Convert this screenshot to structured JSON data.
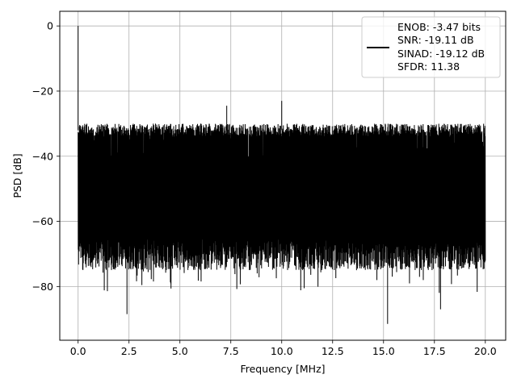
{
  "chart_data": {
    "type": "line",
    "title": "",
    "xlabel": "Frequency [MHz]",
    "ylabel": "PSD [dB]",
    "xlim": [
      -0.9,
      21.0
    ],
    "ylim": [
      -96.5,
      4.5
    ],
    "xticks": [
      0.0,
      2.5,
      5.0,
      7.5,
      10.0,
      12.5,
      15.0,
      17.5,
      20.0
    ],
    "xtick_labels": [
      "0.0",
      "2.5",
      "5.0",
      "7.5",
      "10.0",
      "12.5",
      "15.0",
      "17.5",
      "20.0"
    ],
    "yticks": [
      0,
      -20,
      -40,
      -60,
      -80
    ],
    "ytick_labels": [
      "0",
      "−20",
      "−40",
      "−60",
      "−80"
    ],
    "grid": true,
    "legend_position": "top-right",
    "colors": {
      "series": "#000000",
      "grid": "#b0b0b0",
      "axes": "#000000"
    },
    "legend_lines": [
      "ENOB: -3.47 bits",
      "SNR: -19.11 dB",
      "SINAD: -19.12 dB",
      "SFDR: 11.38"
    ],
    "series": [
      {
        "color": "#000000",
        "x_range": [
          0.0,
          20.0
        ],
        "noise_ceiling_db": -30,
        "noise_floor_db": -70,
        "peaks": [
          {
            "x": 0.0,
            "y": 0.0
          },
          {
            "x": 7.3,
            "y": -24.5
          },
          {
            "x": 10.0,
            "y": -23.0
          },
          {
            "x": 2.4,
            "y": -88.5
          },
          {
            "x": 15.2,
            "y": -91.5
          },
          {
            "x": 17.8,
            "y": -87.0
          }
        ]
      }
    ]
  }
}
